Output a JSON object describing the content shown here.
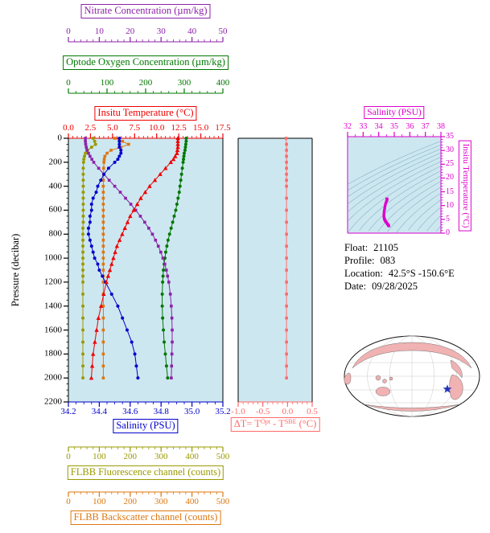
{
  "colors": {
    "plot_bg": "#cde7f0",
    "contour": "#6fa8bc",
    "map_land": "#f0b2b2",
    "map_ocean": "#ffffff",
    "map_outline": "#111111",
    "map_star": "#2233bb"
  },
  "axes": {
    "nitrate": {
      "label": "Nitrate Concentration (µm/kg)",
      "color": "#8b22a8",
      "ticks": [
        "0",
        "10",
        "20",
        "30",
        "40",
        "50"
      ]
    },
    "oxygen": {
      "label": "Optode Oxygen Concentration (µm/kg)",
      "color": "#007700",
      "ticks": [
        "0",
        "100",
        "200",
        "300",
        "400"
      ]
    },
    "temperature": {
      "label": "Insitu Temperature (°C)",
      "color": "#ee0000",
      "ticks": [
        "0.0",
        "2.5",
        "5.0",
        "7.5",
        "10.0",
        "12.5",
        "15.0",
        "17.5"
      ]
    },
    "pressure": {
      "label": "Pressure (decibar)",
      "color": "#000000",
      "ticks": [
        "0",
        "200",
        "400",
        "600",
        "800",
        "1000",
        "1200",
        "1400",
        "1600",
        "1800",
        "2000",
        "2200"
      ]
    },
    "salinity": {
      "label": "Salinity (PSU)",
      "color": "#0000cc",
      "ticks": [
        "34.2",
        "34.4",
        "34.6",
        "34.8",
        "35.0",
        "35.2"
      ]
    },
    "fluorescence": {
      "label": "FLBB Fluorescence channel (counts)",
      "color": "#9a9a00",
      "ticks": [
        "0",
        "100",
        "200",
        "300",
        "400",
        "500"
      ]
    },
    "backscatter": {
      "label": "FLBB Backscatter channel (counts)",
      "color": "#dd7711",
      "ticks": [
        "0",
        "100",
        "200",
        "300",
        "400",
        "500"
      ]
    },
    "delta_t": {
      "label_parts": {
        "p1": "ΔT= T",
        "s1": "Opt",
        "p2": " - T",
        "s2": "SBE",
        "p3": " (°C)"
      },
      "color": "#ff6a6a",
      "ticks": [
        "-1.0",
        "-0.5",
        "0.0",
        "0.5"
      ]
    },
    "ts_salinity": {
      "label": "Salinity (PSU)",
      "color": "#dd00cc",
      "ticks": [
        "32",
        "33",
        "34",
        "35",
        "36",
        "37",
        "38"
      ]
    },
    "ts_temperature": {
      "label": "Insitu Temperature (°C)",
      "color": "#dd00cc",
      "ticks": [
        "0",
        "5",
        "10",
        "15",
        "20",
        "25",
        "30",
        "35"
      ]
    }
  },
  "info": {
    "float_label": "Float:",
    "float_value": "21105",
    "profile_label": "Profile:",
    "profile_value": "083",
    "location_label": "Location:",
    "location_value": "42.5°S -150.6°E",
    "date_label": "Date:",
    "date_value": "09/28/2025"
  },
  "chart_data": [
    {
      "type": "line",
      "title": "Float 21105 profile 083 vertical profiles",
      "ylabel": "Pressure (decibar)",
      "ylim": [
        0,
        2200
      ],
      "y_inverted": true,
      "pressure_dbar": [
        0,
        25,
        50,
        75,
        100,
        125,
        150,
        175,
        200,
        250,
        300,
        350,
        400,
        450,
        500,
        550,
        600,
        650,
        700,
        750,
        800,
        850,
        900,
        950,
        1000,
        1050,
        1100,
        1150,
        1200,
        1300,
        1400,
        1500,
        1600,
        1700,
        1800,
        1900,
        2000
      ],
      "series": [
        {
          "name": "FLBB Fluorescence channel (counts)",
          "axis_range": [
            0,
            500
          ],
          "marker": "circle",
          "color": "#9a9a00",
          "values": [
            80,
            85,
            88,
            75,
            62,
            55,
            52,
            50,
            49,
            48,
            48,
            48,
            48,
            48,
            48,
            48,
            48,
            48,
            48,
            47,
            47,
            47,
            47,
            47,
            47,
            47,
            47,
            47,
            47,
            47,
            47,
            47,
            47,
            47,
            47,
            47,
            47
          ]
        },
        {
          "name": "FLBB Backscatter channel (counts)",
          "axis_range": [
            0,
            500
          ],
          "marker": "square",
          "color": "#dd7711",
          "values": [
            150,
            175,
            195,
            170,
            138,
            125,
            118,
            116,
            115,
            114,
            114,
            113,
            113,
            113,
            113,
            113,
            113,
            113,
            113,
            113,
            113,
            113,
            113,
            113,
            113,
            113,
            113,
            113,
            113,
            113,
            113,
            113,
            113,
            113,
            113,
            113,
            113
          ]
        },
        {
          "name": "Optode Oxygen Concentration (µm/kg)",
          "axis_range": [
            0,
            400
          ],
          "marker": "circle",
          "color": "#007700",
          "values": [
            305,
            305,
            304,
            303,
            302,
            300,
            299,
            298,
            297,
            295,
            293,
            291,
            289,
            287,
            284,
            281,
            278,
            274,
            270,
            266,
            262,
            258,
            255,
            252,
            250,
            248,
            246,
            245,
            244,
            243,
            243,
            244,
            246,
            248,
            251,
            254,
            257
          ]
        },
        {
          "name": "Nitrate Concentration (µm/kg)",
          "axis_range": [
            0,
            50
          ],
          "marker": "square",
          "color": "#8b22a8",
          "values": [
            5.5,
            5.5,
            5.6,
            5.8,
            6,
            6.5,
            7,
            7.6,
            8.2,
            9.8,
            11.5,
            13.2,
            15,
            16.8,
            18.5,
            20.2,
            21.8,
            23.3,
            24.7,
            26,
            27.2,
            28.2,
            29.1,
            29.9,
            30.6,
            31.2,
            31.7,
            32.1,
            32.5,
            33,
            33.3,
            33.5,
            33.6,
            33.6,
            33.5,
            33.4,
            33.3
          ]
        },
        {
          "name": "Salinity (PSU)",
          "axis_range": [
            34.2,
            35.2
          ],
          "marker": "circle",
          "color": "#0000cc",
          "values": [
            34.53,
            34.53,
            34.53,
            34.53,
            34.54,
            34.54,
            34.53,
            34.52,
            34.5,
            34.46,
            34.43,
            34.41,
            34.39,
            34.38,
            34.36,
            34.35,
            34.35,
            34.34,
            34.34,
            34.33,
            34.33,
            34.34,
            34.35,
            34.36,
            34.37,
            34.39,
            34.4,
            34.42,
            34.44,
            34.48,
            34.52,
            34.55,
            34.58,
            34.61,
            34.63,
            34.64,
            34.65
          ]
        },
        {
          "name": "Insitu Temperature (°C)",
          "axis_range": [
            0,
            17.5
          ],
          "marker": "triangle",
          "color": "#ee0000",
          "values": [
            12.4,
            12.4,
            12.4,
            12.4,
            12.35,
            12.3,
            12.1,
            11.9,
            11.6,
            11,
            10.4,
            9.8,
            9.2,
            8.7,
            8.2,
            7.8,
            7.4,
            7,
            6.7,
            6.4,
            6.1,
            5.8,
            5.5,
            5.3,
            5.1,
            4.9,
            4.7,
            4.5,
            4.3,
            4,
            3.7,
            3.4,
            3.2,
            3,
            2.8,
            2.7,
            2.6
          ]
        }
      ]
    },
    {
      "type": "line",
      "title": "Optode minus SBE temperature difference",
      "xlabel": "ΔT= TOpt - TSBE (°C)",
      "xlim": [
        -1.0,
        0.5
      ],
      "pressure_dbar": [
        0,
        50,
        100,
        150,
        200,
        250,
        300,
        350,
        400,
        500,
        600,
        700,
        800,
        900,
        1000,
        1100,
        1200,
        1300,
        1400,
        1500,
        1600,
        1700,
        1800,
        1900,
        2000
      ],
      "series": [
        {
          "name": "ΔT (°C)",
          "axis_range": [
            -1,
            0.5
          ],
          "marker": "square",
          "color": "#ff6a6a",
          "values": [
            -0.03,
            -0.02,
            -0.02,
            -0.02,
            -0.02,
            -0.02,
            -0.02,
            -0.02,
            -0.02,
            -0.02,
            -0.02,
            -0.02,
            -0.02,
            -0.02,
            -0.02,
            -0.02,
            -0.02,
            -0.02,
            -0.02,
            -0.02,
            -0.02,
            -0.02,
            -0.02,
            -0.02,
            -0.02
          ]
        }
      ]
    },
    {
      "type": "scatter",
      "title": "T-S diagram with isopycnal contours",
      "xlabel": "Salinity (PSU)",
      "ylabel": "Insitu Temperature (°C)",
      "xlim": [
        32,
        38
      ],
      "ylim": [
        0,
        35
      ],
      "color": "#dd00cc",
      "marker": "square",
      "derived_from": {
        "x_series": "Salinity (PSU)",
        "y_series": "Insitu Temperature (°C)"
      }
    }
  ]
}
